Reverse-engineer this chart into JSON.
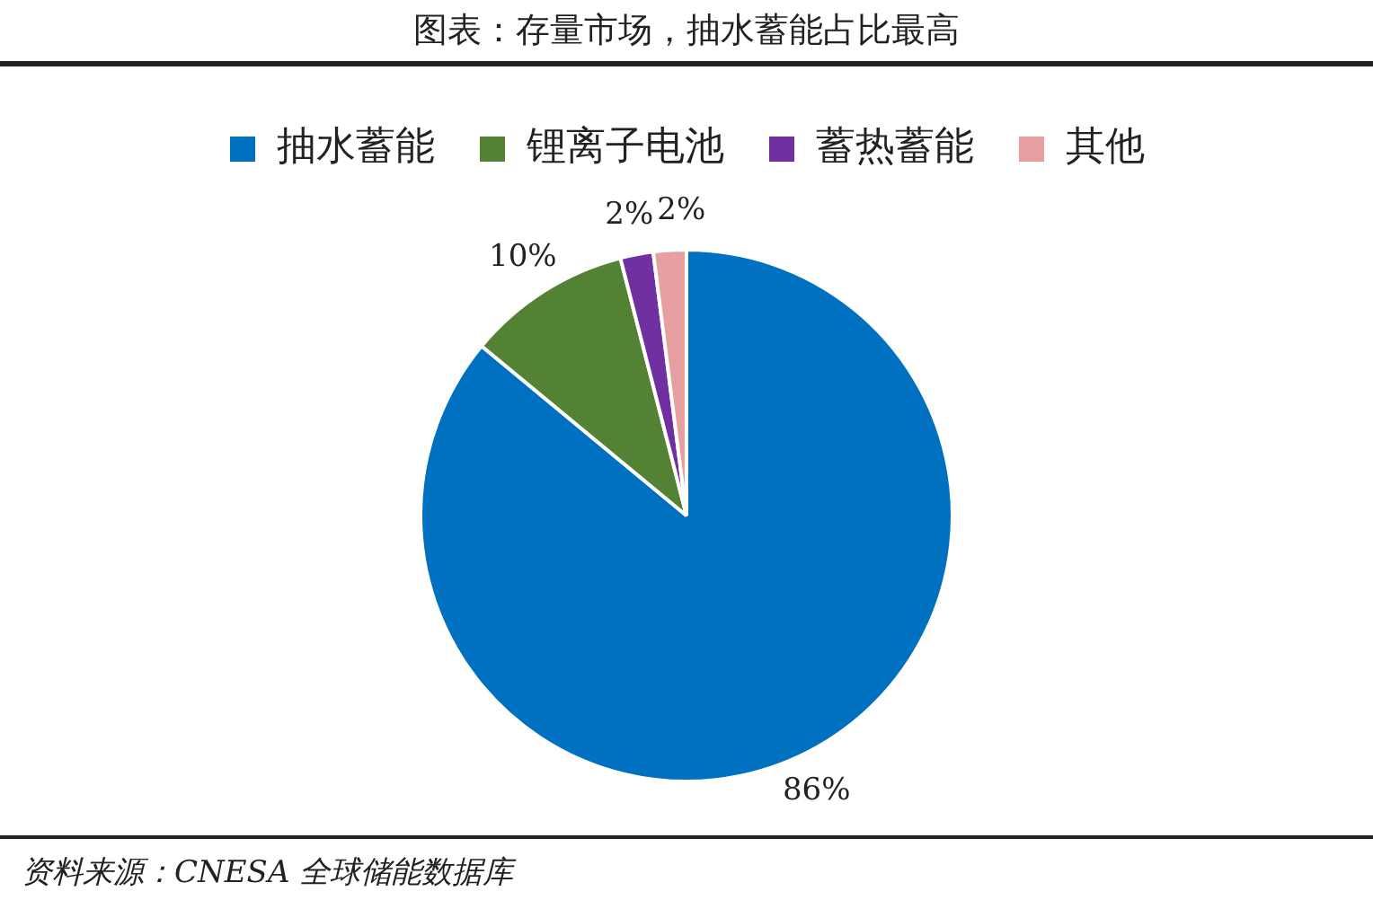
{
  "chart_data": {
    "type": "pie",
    "title": "图表：存量市场，抽水蓄能占比最高",
    "categories": [
      "抽水蓄能",
      "锂离子电池",
      "蓄热蓄能",
      "其他"
    ],
    "values": [
      86,
      10,
      2,
      2
    ],
    "colors": [
      "#0070c0",
      "#548235",
      "#7030a0",
      "#e6a0a0"
    ],
    "value_labels": [
      "86%",
      "10%",
      "2%",
      "2%"
    ],
    "legend": "top",
    "annotations": [
      "资料来源：CNESA 全球储能数据库"
    ]
  }
}
